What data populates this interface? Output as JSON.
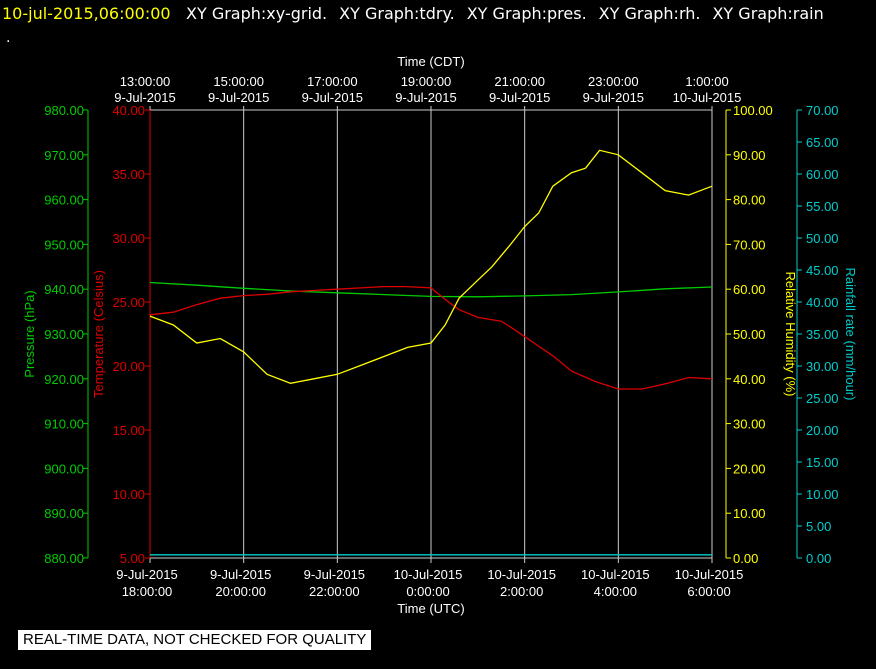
{
  "header": {
    "timestamp": "10-jul-2015,06:00:00",
    "items": [
      "XY Graph:xy-grid.",
      "XY Graph:tdry.",
      "XY Graph:pres.",
      "XY Graph:rh.",
      "XY Graph:rain"
    ],
    "dot": "."
  },
  "footer": {
    "note": "REAL-TIME DATA, NOT CHECKED FOR QUALITY"
  },
  "colors": {
    "pressure": "#00cc00",
    "temperature": "#dd0000",
    "humidity": "#ffff00",
    "rainfall": "#00cccc",
    "grid": "#cccccc",
    "text": "#ffffff",
    "background": "#000000"
  },
  "chart_data": {
    "type": "line",
    "grid": true,
    "x_top": {
      "label": "Time (CDT)",
      "ticks": [
        [
          "13:00:00",
          "9-Jul-2015"
        ],
        [
          "15:00:00",
          "9-Jul-2015"
        ],
        [
          "17:00:00",
          "9-Jul-2015"
        ],
        [
          "19:00:00",
          "9-Jul-2015"
        ],
        [
          "21:00:00",
          "9-Jul-2015"
        ],
        [
          "23:00:00",
          "9-Jul-2015"
        ],
        [
          "1:00:00",
          "10-Jul-2015"
        ]
      ]
    },
    "x_bottom": {
      "label": "Time (UTC)",
      "ticks": [
        [
          "9-Jul-2015",
          "18:00:00"
        ],
        [
          "9-Jul-2015",
          "20:00:00"
        ],
        [
          "9-Jul-2015",
          "22:00:00"
        ],
        [
          "10-Jul-2015",
          "0:00:00"
        ],
        [
          "10-Jul-2015",
          "2:00:00"
        ],
        [
          "10-Jul-2015",
          "4:00:00"
        ],
        [
          "10-Jul-2015",
          "6:00:00"
        ]
      ]
    },
    "x_range_hours_utc": [
      18,
      30
    ],
    "axes": {
      "pressure": {
        "label": "Pressure (hPa)",
        "range": [
          880,
          980
        ],
        "ticks": [
          "880.00",
          "890.00",
          "900.00",
          "910.00",
          "920.00",
          "930.00",
          "940.00",
          "950.00",
          "960.00",
          "970.00",
          "980.00"
        ]
      },
      "temperature": {
        "label": "Temperature (Celsius)",
        "range": [
          5,
          40
        ],
        "ticks": [
          "5.00",
          "10.00",
          "15.00",
          "20.00",
          "25.00",
          "30.00",
          "35.00",
          "40.00"
        ]
      },
      "humidity": {
        "label": "Relative Humidity (%)",
        "range": [
          0,
          100
        ],
        "ticks": [
          "0.00",
          "10.00",
          "20.00",
          "30.00",
          "40.00",
          "50.00",
          "60.00",
          "70.00",
          "80.00",
          "90.00",
          "100.00"
        ]
      },
      "rainfall": {
        "label": "Rainfall rate (mm/hour)",
        "range": [
          0,
          70
        ],
        "ticks": [
          "0.00",
          "5.00",
          "10.00",
          "15.00",
          "20.00",
          "25.00",
          "30.00",
          "35.00",
          "40.00",
          "45.00",
          "50.00",
          "55.00",
          "60.00",
          "65.00",
          "70.00"
        ]
      }
    },
    "series": [
      {
        "name": "Pressure (hPa)",
        "axis": "pressure",
        "x": [
          18,
          19,
          20,
          21,
          22,
          23,
          24,
          25,
          26,
          27,
          28,
          29,
          30
        ],
        "y": [
          941.5,
          940.9,
          940.2,
          939.6,
          939.2,
          938.8,
          938.4,
          938.3,
          938.5,
          938.8,
          939.4,
          940.1,
          940.5
        ]
      },
      {
        "name": "Temperature (Celsius)",
        "axis": "temperature",
        "x": [
          18,
          18.5,
          19,
          19.5,
          20,
          20.5,
          21,
          21.5,
          22,
          22.5,
          23,
          23.5,
          24,
          24.3,
          24.6,
          25,
          25.5,
          25.8,
          26.2,
          26.6,
          27,
          27.5,
          28,
          28.5,
          29,
          29.5,
          30
        ],
        "y": [
          24.0,
          24.2,
          24.8,
          25.3,
          25.5,
          25.6,
          25.8,
          25.9,
          26.0,
          26.1,
          26.2,
          26.2,
          26.1,
          25.2,
          24.4,
          23.8,
          23.5,
          22.8,
          21.8,
          20.8,
          19.6,
          18.8,
          18.2,
          18.2,
          18.6,
          19.1,
          19.0
        ]
      },
      {
        "name": "Relative Humidity (%)",
        "axis": "humidity",
        "x": [
          18,
          18.5,
          19,
          19.5,
          20,
          20.5,
          21,
          21.5,
          22,
          22.5,
          23,
          23.5,
          24,
          24.3,
          24.6,
          25,
          25.3,
          25.7,
          26,
          26.3,
          26.6,
          27,
          27.3,
          27.6,
          28,
          28.5,
          29,
          29.5,
          30
        ],
        "y": [
          54,
          52,
          48,
          49,
          46,
          41,
          39,
          40,
          41,
          43,
          45,
          47,
          48,
          52,
          58,
          62,
          65,
          70,
          74,
          77,
          83,
          86,
          87,
          91,
          90,
          86,
          82,
          81,
          83
        ]
      },
      {
        "name": "Rainfall rate (mm/hour)",
        "axis": "rainfall",
        "x": [
          18,
          30
        ],
        "y": [
          0.5,
          0.5
        ]
      }
    ]
  }
}
